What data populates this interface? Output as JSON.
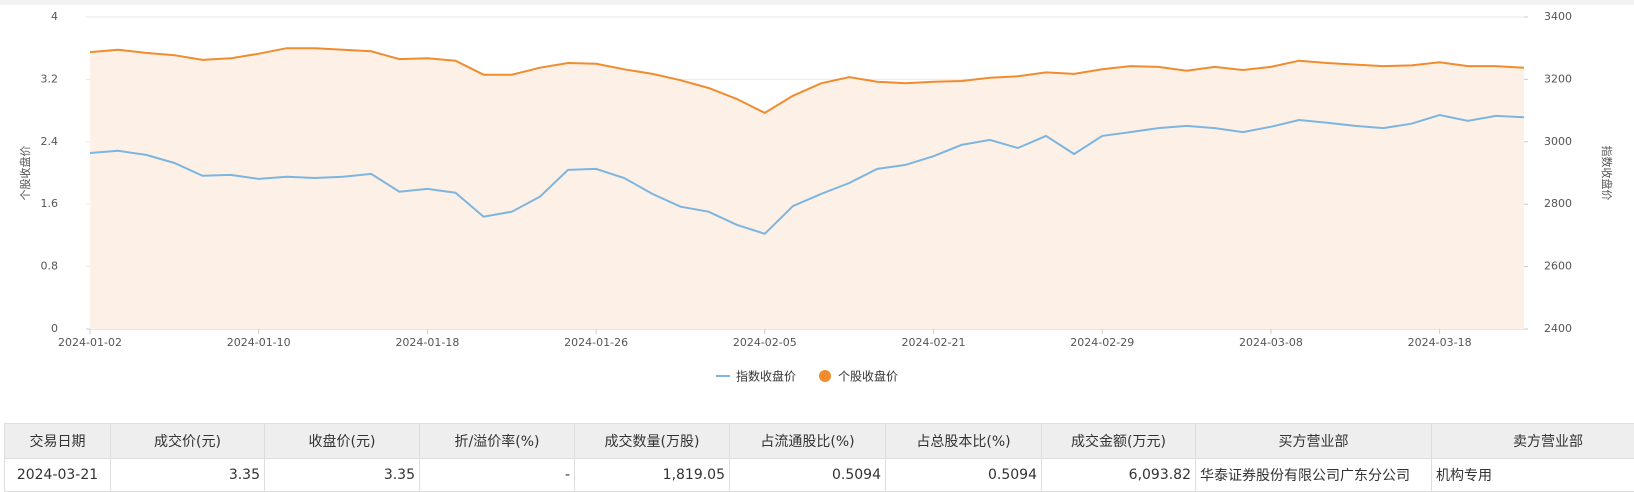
{
  "chart_data": {
    "type": "line",
    "y_label": "个股收盘价",
    "y2_label": "指数收盘价",
    "categories": [
      "2024-01-02",
      null,
      null,
      null,
      null,
      null,
      "2024-01-10",
      null,
      null,
      null,
      null,
      null,
      "2024-01-18",
      null,
      null,
      null,
      null,
      null,
      "2024-01-26",
      null,
      null,
      null,
      null,
      null,
      "2024-02-05",
      null,
      null,
      null,
      null,
      null,
      "2024-02-21",
      null,
      null,
      null,
      null,
      null,
      "2024-02-29",
      null,
      null,
      null,
      null,
      null,
      "2024-03-08",
      null,
      null,
      null,
      null,
      null,
      "2024-03-18",
      null,
      null,
      null
    ],
    "series": [
      {
        "name": "指数收盘价",
        "color": "#7cb5e0",
        "axis": "y2",
        "values": [
          2964,
          2971,
          2958,
          2932,
          2891,
          2894,
          2881,
          2888,
          2884,
          2888,
          2897,
          2840,
          2849,
          2837,
          2760,
          2776,
          2824,
          2910,
          2913,
          2884,
          2833,
          2792,
          2776,
          2734,
          2705,
          2794,
          2833,
          2868,
          2913,
          2926,
          2954,
          2990,
          3006,
          2980,
          3019,
          2961,
          3019,
          3031,
          3044,
          3051,
          3044,
          3031,
          3048,
          3070,
          3061,
          3051,
          3044,
          3058,
          3086,
          3067,
          3083,
          3079
        ]
      },
      {
        "name": "个股收盘价",
        "color": "#f08c2e",
        "area_color": "#fdf1e7",
        "values": [
          3.55,
          3.58,
          3.54,
          3.51,
          3.45,
          3.47,
          3.53,
          3.6,
          3.6,
          3.58,
          3.56,
          3.46,
          3.47,
          3.44,
          3.26,
          3.26,
          3.35,
          3.41,
          3.4,
          3.33,
          3.27,
          3.19,
          3.09,
          2.95,
          2.77,
          2.99,
          3.15,
          3.23,
          3.17,
          3.15,
          3.17,
          3.18,
          3.22,
          3.24,
          3.29,
          3.27,
          3.33,
          3.37,
          3.36,
          3.31,
          3.36,
          3.32,
          3.36,
          3.44,
          3.41,
          3.39,
          3.37,
          3.38,
          3.42,
          3.37,
          3.37,
          3.35
        ]
      }
    ],
    "ylim": [
      0,
      4
    ],
    "yticks": [
      0,
      0.8,
      1.6,
      2.4,
      3.2,
      4
    ],
    "y2lim": [
      2400,
      3400
    ],
    "y2ticks": [
      2400,
      2600,
      2800,
      3000,
      3200,
      3400
    ],
    "grid": true,
    "legend": "bottom"
  },
  "table": {
    "headers": [
      "交易日期",
      "成交价(元)",
      "收盘价(元)",
      "折/溢价率(%)",
      "成交数量(万股)",
      "占流通股比(%)",
      "占总股本比(%)",
      "成交金额(万元)",
      "买方营业部",
      "卖方营业部"
    ],
    "rows": [
      [
        "2024-03-21",
        "3.35",
        "3.35",
        "-",
        "1,819.05",
        "0.5094",
        "0.5094",
        "6,093.82",
        "华泰证券股份有限公司广东分公司",
        "机构专用"
      ]
    ]
  }
}
